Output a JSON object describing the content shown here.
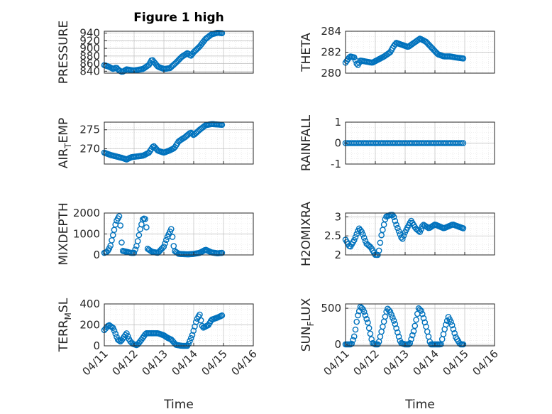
{
  "figure_title": "Figure 1 high",
  "colors": {
    "marker": "#0072BD",
    "axis": "#262626",
    "grid": "#bdbdbd",
    "minor_grid": "#e0e0e0"
  },
  "chart_data": [
    {
      "type": "scatter",
      "id": "pressure",
      "ylabel": "PRESSURE",
      "title": "Figure 1 high",
      "ylim": [
        835,
        945
      ],
      "yticks": [
        840,
        860,
        880,
        900,
        920,
        940
      ],
      "xlim": [
        0,
        5
      ],
      "xticks": [],
      "xticklabels": [],
      "xlabel": "",
      "grid": true,
      "anchors": [
        [
          0,
          856
        ],
        [
          0.15,
          852
        ],
        [
          0.3,
          846
        ],
        [
          0.4,
          850
        ],
        [
          0.5,
          842
        ],
        [
          0.6,
          838
        ],
        [
          0.75,
          845
        ],
        [
          0.9,
          843
        ],
        [
          1.0,
          842
        ],
        [
          1.3,
          846
        ],
        [
          1.5,
          857
        ],
        [
          1.6,
          871
        ],
        [
          1.8,
          852
        ],
        [
          2.0,
          846
        ],
        [
          2.2,
          848
        ],
        [
          2.4,
          862
        ],
        [
          2.6,
          878
        ],
        [
          2.8,
          888
        ],
        [
          2.9,
          880
        ],
        [
          3.0,
          890
        ],
        [
          3.2,
          905
        ],
        [
          3.4,
          925
        ],
        [
          3.6,
          937
        ],
        [
          3.8,
          941
        ],
        [
          3.95,
          940
        ]
      ]
    },
    {
      "type": "scatter",
      "id": "theta",
      "ylabel": "THETA",
      "ylim": [
        280,
        284
      ],
      "yticks": [
        280,
        282,
        284
      ],
      "xlim": [
        0,
        5
      ],
      "xticks": [],
      "xticklabels": [],
      "xlabel": "",
      "grid": true,
      "anchors": [
        [
          0,
          281.0
        ],
        [
          0.15,
          281.6
        ],
        [
          0.3,
          281.5
        ],
        [
          0.4,
          280.7
        ],
        [
          0.5,
          281.2
        ],
        [
          0.7,
          281.1
        ],
        [
          0.9,
          281.0
        ],
        [
          1.1,
          281.3
        ],
        [
          1.3,
          281.6
        ],
        [
          1.5,
          282.0
        ],
        [
          1.6,
          282.5
        ],
        [
          1.7,
          282.9
        ],
        [
          1.9,
          282.7
        ],
        [
          2.1,
          282.5
        ],
        [
          2.3,
          282.9
        ],
        [
          2.5,
          283.3
        ],
        [
          2.7,
          283.0
        ],
        [
          2.9,
          282.4
        ],
        [
          3.1,
          281.8
        ],
        [
          3.3,
          281.6
        ],
        [
          3.5,
          281.6
        ],
        [
          3.7,
          281.5
        ],
        [
          3.95,
          281.4
        ]
      ]
    },
    {
      "type": "scatter",
      "id": "air_temp",
      "ylabel": "AIR_TEMP",
      "ylabel_display": {
        "main": "AIR",
        "sub": "T",
        "rest": "EMP"
      },
      "ylim": [
        266,
        277
      ],
      "yticks": [
        270,
        275
      ],
      "xlim": [
        0,
        5
      ],
      "xticks": [],
      "xticklabels": [],
      "xlabel": "",
      "grid": true,
      "anchors": [
        [
          0,
          269.0
        ],
        [
          0.2,
          268.4
        ],
        [
          0.4,
          268.0
        ],
        [
          0.6,
          267.6
        ],
        [
          0.75,
          267.2
        ],
        [
          0.9,
          267.8
        ],
        [
          1.1,
          268.0
        ],
        [
          1.3,
          268.2
        ],
        [
          1.5,
          269.0
        ],
        [
          1.65,
          270.8
        ],
        [
          1.8,
          269.5
        ],
        [
          2.0,
          269.0
        ],
        [
          2.2,
          269.6
        ],
        [
          2.35,
          270.2
        ],
        [
          2.5,
          272.0
        ],
        [
          2.7,
          273.0
        ],
        [
          2.9,
          274.3
        ],
        [
          3.0,
          273.6
        ],
        [
          3.2,
          275.0
        ],
        [
          3.4,
          276.2
        ],
        [
          3.6,
          276.5
        ],
        [
          3.95,
          276.3
        ]
      ]
    },
    {
      "type": "scatter",
      "id": "rainfall",
      "ylabel": "RAINFALL",
      "ylim": [
        -1,
        1
      ],
      "yticks": [
        -1,
        0,
        1
      ],
      "xlim": [
        0,
        5
      ],
      "xticks": [],
      "xticklabels": [],
      "xlabel": "",
      "grid": true,
      "anchors": [
        [
          0,
          0
        ],
        [
          3.95,
          0
        ]
      ]
    },
    {
      "type": "scatter",
      "id": "mixdepth",
      "ylabel": "MIXDEPTH",
      "ylim": [
        0,
        2000
      ],
      "yticks": [
        0,
        1000,
        2000
      ],
      "xlim": [
        0,
        5
      ],
      "xticks": [],
      "xticklabels": [],
      "xlabel": "",
      "grid": true,
      "anchors": [
        [
          0,
          100
        ],
        [
          0.1,
          150
        ],
        [
          0.2,
          400
        ],
        [
          0.3,
          1000
        ],
        [
          0.4,
          1600
        ],
        [
          0.5,
          1850
        ],
        [
          0.55,
          1300
        ],
        [
          0.6,
          200
        ],
        [
          0.75,
          150
        ],
        [
          0.9,
          100
        ],
        [
          1.0,
          100
        ],
        [
          1.1,
          500
        ],
        [
          1.2,
          1200
        ],
        [
          1.3,
          1750
        ],
        [
          1.4,
          1700
        ],
        [
          1.45,
          300
        ],
        [
          1.6,
          150
        ],
        [
          1.8,
          100
        ],
        [
          2.0,
          400
        ],
        [
          2.1,
          800
        ],
        [
          2.25,
          1250
        ],
        [
          2.35,
          200
        ],
        [
          2.5,
          50
        ],
        [
          2.8,
          30
        ],
        [
          3.0,
          50
        ],
        [
          3.2,
          100
        ],
        [
          3.4,
          250
        ],
        [
          3.6,
          120
        ],
        [
          3.8,
          80
        ],
        [
          3.95,
          100
        ]
      ]
    },
    {
      "type": "scatter",
      "id": "h2omixra",
      "ylabel": "H2OMIXRA",
      "ylim": [
        2,
        3.1
      ],
      "yticks": [
        2,
        2.5,
        3
      ],
      "xlim": [
        0,
        5
      ],
      "xticks": [],
      "xticklabels": [],
      "xlabel": "",
      "grid": true,
      "anchors": [
        [
          0,
          2.4
        ],
        [
          0.15,
          2.2
        ],
        [
          0.3,
          2.4
        ],
        [
          0.45,
          2.7
        ],
        [
          0.55,
          2.6
        ],
        [
          0.7,
          2.3
        ],
        [
          0.85,
          2.2
        ],
        [
          1.0,
          2.0
        ],
        [
          1.1,
          2.0
        ],
        [
          1.2,
          2.5
        ],
        [
          1.35,
          3.0
        ],
        [
          1.5,
          3.05
        ],
        [
          1.6,
          3.05
        ],
        [
          1.7,
          2.8
        ],
        [
          1.8,
          2.6
        ],
        [
          1.9,
          2.4
        ],
        [
          2.0,
          2.6
        ],
        [
          2.2,
          2.9
        ],
        [
          2.35,
          2.7
        ],
        [
          2.5,
          2.6
        ],
        [
          2.6,
          2.8
        ],
        [
          2.8,
          2.7
        ],
        [
          3.0,
          2.8
        ],
        [
          3.3,
          2.7
        ],
        [
          3.6,
          2.8
        ],
        [
          3.95,
          2.7
        ]
      ]
    },
    {
      "type": "scatter",
      "id": "terr_msl",
      "ylabel": "TERR_MSL",
      "ylabel_display": {
        "main": "TERR",
        "sub": "M",
        "rest": "SL"
      },
      "ylim": [
        0,
        400
      ],
      "yticks": [
        0,
        200,
        400
      ],
      "xlim": [
        0,
        5
      ],
      "xticks": [
        0,
        1,
        2,
        3,
        4,
        5
      ],
      "xticklabels": [
        "04/11",
        "04/12",
        "04/13",
        "04/14",
        "04/15",
        "04/16"
      ],
      "xlabel": "Time",
      "grid": true,
      "anchors": [
        [
          0,
          150
        ],
        [
          0.15,
          200
        ],
        [
          0.3,
          170
        ],
        [
          0.45,
          60
        ],
        [
          0.55,
          40
        ],
        [
          0.75,
          120
        ],
        [
          0.85,
          50
        ],
        [
          0.95,
          20
        ],
        [
          1.1,
          5
        ],
        [
          1.25,
          60
        ],
        [
          1.4,
          120
        ],
        [
          1.6,
          120
        ],
        [
          1.8,
          120
        ],
        [
          2.0,
          100
        ],
        [
          2.1,
          80
        ],
        [
          2.25,
          60
        ],
        [
          2.4,
          10
        ],
        [
          2.6,
          0
        ],
        [
          2.8,
          0
        ],
        [
          2.95,
          100
        ],
        [
          3.1,
          250
        ],
        [
          3.2,
          300
        ],
        [
          3.3,
          170
        ],
        [
          3.5,
          200
        ],
        [
          3.6,
          250
        ],
        [
          3.8,
          270
        ],
        [
          3.95,
          290
        ]
      ]
    },
    {
      "type": "scatter",
      "id": "sun_flux",
      "ylabel": "SUN_FLUX",
      "ylabel_display": {
        "main": "SUN",
        "sub": "F",
        "rest": "LUX"
      },
      "ylim": [
        -20,
        560
      ],
      "yticks": [
        0,
        500
      ],
      "xlim": [
        0,
        5
      ],
      "xticks": [
        0,
        1,
        2,
        3,
        4,
        5
      ],
      "xticklabels": [
        "04/11",
        "04/12",
        "04/13",
        "04/14",
        "04/15",
        "04/16"
      ],
      "xlabel": "Time",
      "grid": true,
      "anchors": [
        [
          0,
          0
        ],
        [
          0.2,
          0
        ],
        [
          0.3,
          120
        ],
        [
          0.4,
          380
        ],
        [
          0.5,
          520
        ],
        [
          0.6,
          480
        ],
        [
          0.75,
          300
        ],
        [
          0.9,
          20
        ],
        [
          1.0,
          0
        ],
        [
          1.1,
          0
        ],
        [
          1.25,
          250
        ],
        [
          1.4,
          500
        ],
        [
          1.5,
          450
        ],
        [
          1.65,
          300
        ],
        [
          1.85,
          20
        ],
        [
          2.0,
          0
        ],
        [
          2.15,
          0
        ],
        [
          2.3,
          200
        ],
        [
          2.45,
          500
        ],
        [
          2.55,
          460
        ],
        [
          2.7,
          250
        ],
        [
          2.85,
          0
        ],
        [
          3.0,
          0
        ],
        [
          3.2,
          0
        ],
        [
          3.35,
          250
        ],
        [
          3.45,
          380
        ],
        [
          3.55,
          300
        ],
        [
          3.7,
          100
        ],
        [
          3.85,
          0
        ],
        [
          3.95,
          0
        ]
      ]
    }
  ]
}
